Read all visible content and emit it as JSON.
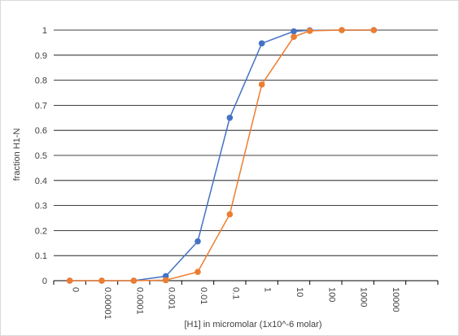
{
  "chart_data": {
    "type": "line",
    "title": "",
    "xlabel": "[H1] in micromolar (1x10^-6 molar)",
    "ylabel": "fraction H1-N",
    "categories": [
      "0",
      "0.00001",
      "0.0001",
      "0.001",
      "0.01",
      "0.1",
      "1",
      "10",
      "100",
      "1000",
      "10000"
    ],
    "ylim": [
      0,
      1
    ],
    "yticks": [
      0,
      0.1,
      0.2,
      0.3,
      0.4,
      0.5,
      0.6,
      0.7,
      0.8,
      0.9,
      1
    ],
    "grid": true,
    "legend": "none",
    "series": [
      {
        "color": "#4472c4",
        "points": [
          {
            "x": 0.0,
            "y": 0.0
          },
          {
            "x": 1.0,
            "y": 0.0
          },
          {
            "x": 2.0,
            "y": 0.0
          },
          {
            "x": 3.0,
            "y": 0.018
          },
          {
            "x": 4.0,
            "y": 0.157
          },
          {
            "x": 5.0,
            "y": 0.65
          },
          {
            "x": 6.0,
            "y": 0.947
          },
          {
            "x": 7.0,
            "y": 0.995
          },
          {
            "x": 7.5,
            "y": 0.999
          },
          {
            "x": 8.5,
            "y": 1.0
          },
          {
            "x": 9.5,
            "y": 1.0
          }
        ]
      },
      {
        "color": "#ed7d31",
        "points": [
          {
            "x": 0.0,
            "y": 0.0
          },
          {
            "x": 1.0,
            "y": 0.0
          },
          {
            "x": 2.0,
            "y": 0.0
          },
          {
            "x": 3.0,
            "y": 0.002
          },
          {
            "x": 4.0,
            "y": 0.035
          },
          {
            "x": 5.0,
            "y": 0.265
          },
          {
            "x": 6.0,
            "y": 0.783
          },
          {
            "x": 7.0,
            "y": 0.973
          },
          {
            "x": 7.5,
            "y": 0.997
          },
          {
            "x": 8.5,
            "y": 1.0
          },
          {
            "x": 9.5,
            "y": 1.0
          }
        ]
      }
    ]
  }
}
